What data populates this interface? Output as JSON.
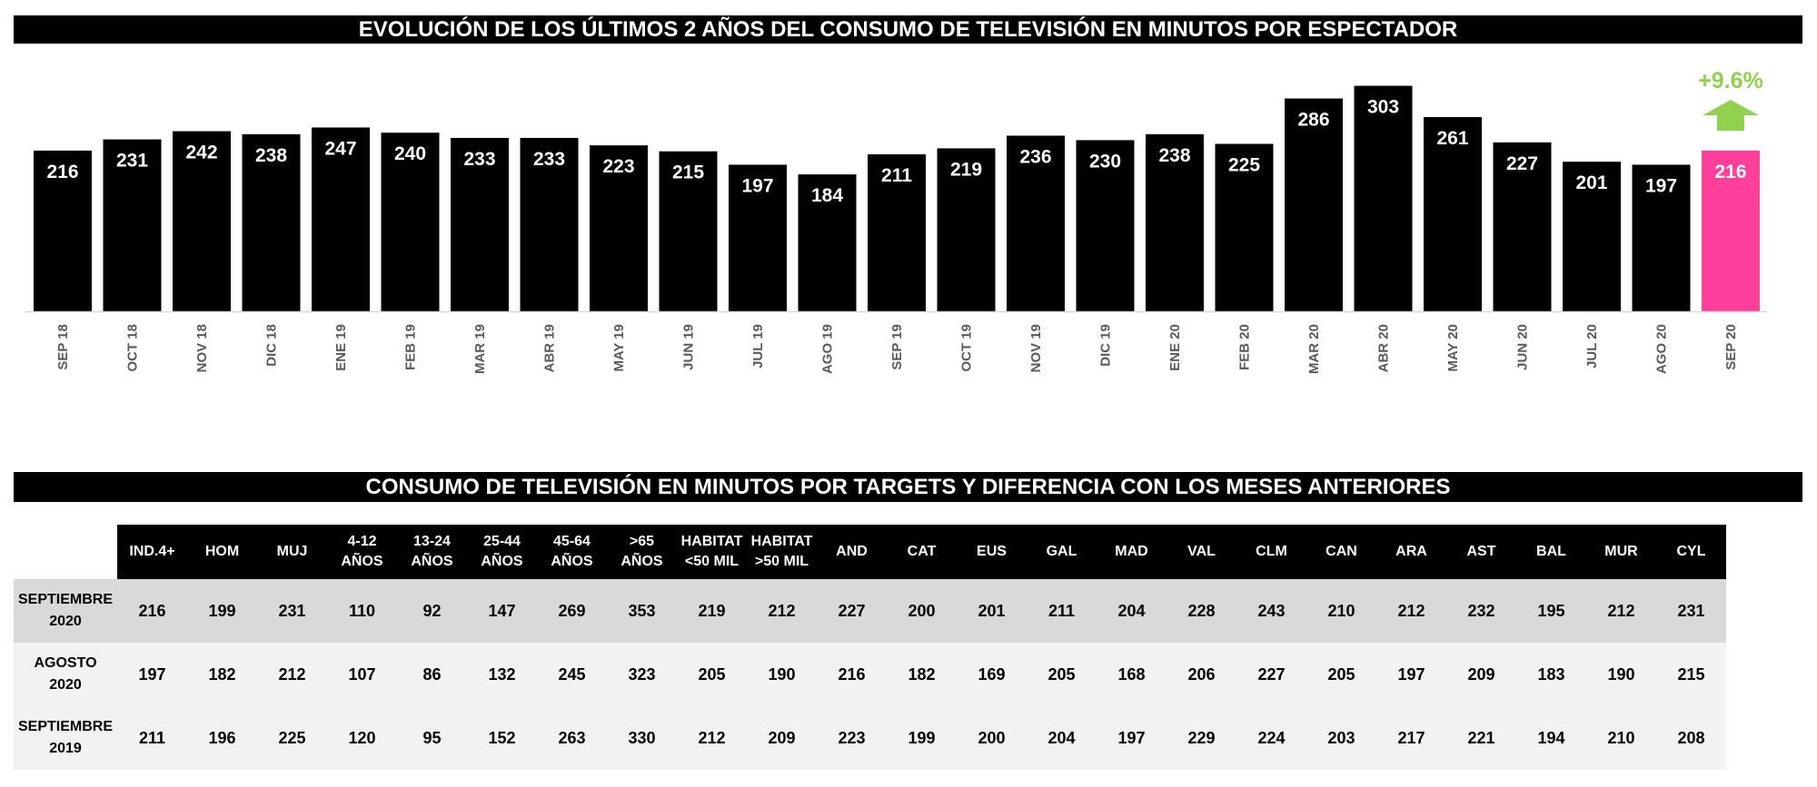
{
  "chart_data": {
    "type": "bar",
    "title": "EVOLUCIÓN DE LOS ÚLTIMOS 2 AÑOS DEL CONSUMO DE TELEVISIÓN EN MINUTOS POR ESPECTADOR",
    "categories": [
      "SEP 18",
      "OCT 18",
      "NOV 18",
      "DIC 18",
      "ENE 19",
      "FEB 19",
      "MAR 19",
      "ABR 19",
      "MAY 19",
      "JUN 19",
      "JUL 19",
      "AGO 19",
      "SEP 19",
      "OCT 19",
      "NOV 19",
      "DIC 19",
      "ENE 20",
      "FEB 20",
      "MAR 20",
      "ABR 20",
      "MAY 20",
      "JUN 20",
      "JUL 20",
      "AGO 20",
      "SEP 20"
    ],
    "values": [
      216,
      231,
      242,
      238,
      247,
      240,
      233,
      233,
      223,
      215,
      197,
      184,
      211,
      219,
      236,
      230,
      238,
      225,
      286,
      303,
      261,
      227,
      201,
      197,
      216
    ],
    "ylim": [
      0,
      420
    ],
    "grid": false,
    "xlabel": "",
    "ylabel": "",
    "colors": {
      "default": "#000000",
      "highlight": "#ff3f9a",
      "change": "#92d050"
    },
    "highlight_index": 24,
    "annotation": {
      "text": "+9.6%",
      "icon": "arrow-up-icon"
    }
  },
  "table": {
    "title": "CONSUMO DE TELEVISIÓN EN MINUTOS POR TARGETS Y DIFERENCIA CON LOS MESES ANTERIORES",
    "columns": [
      [
        "IND.4+"
      ],
      [
        "HOM"
      ],
      [
        "MUJ"
      ],
      [
        "4-12",
        "AÑOS"
      ],
      [
        "13-24",
        "AÑOS"
      ],
      [
        "25-44",
        "AÑOS"
      ],
      [
        "45-64",
        "AÑOS"
      ],
      [
        ">65",
        "AÑOS"
      ],
      [
        "HABITAT",
        "<50 MIL"
      ],
      [
        "HABITAT",
        ">50 MIL"
      ],
      [
        "AND"
      ],
      [
        "CAT"
      ],
      [
        "EUS"
      ],
      [
        "GAL"
      ],
      [
        "MAD"
      ],
      [
        "VAL"
      ],
      [
        "CLM"
      ],
      [
        "CAN"
      ],
      [
        "ARA"
      ],
      [
        "AST"
      ],
      [
        "BAL"
      ],
      [
        "MUR"
      ],
      [
        "CYL"
      ]
    ],
    "rows": [
      {
        "label": [
          "SEPTIEMBRE",
          "2020"
        ],
        "values": [
          216,
          199,
          231,
          110,
          92,
          147,
          269,
          353,
          219,
          212,
          227,
          200,
          201,
          211,
          204,
          228,
          243,
          210,
          212,
          232,
          195,
          212,
          231
        ]
      },
      {
        "label": [
          "AGOSTO",
          "2020"
        ],
        "values": [
          197,
          182,
          212,
          107,
          86,
          132,
          245,
          323,
          205,
          190,
          216,
          182,
          169,
          205,
          168,
          206,
          227,
          205,
          197,
          209,
          183,
          190,
          215
        ]
      },
      {
        "label": [
          "SEPTIEMBRE",
          "2019"
        ],
        "values": [
          211,
          196,
          225,
          120,
          95,
          152,
          263,
          330,
          212,
          209,
          223,
          199,
          200,
          204,
          197,
          229,
          224,
          203,
          217,
          221,
          194,
          210,
          208
        ]
      }
    ]
  }
}
